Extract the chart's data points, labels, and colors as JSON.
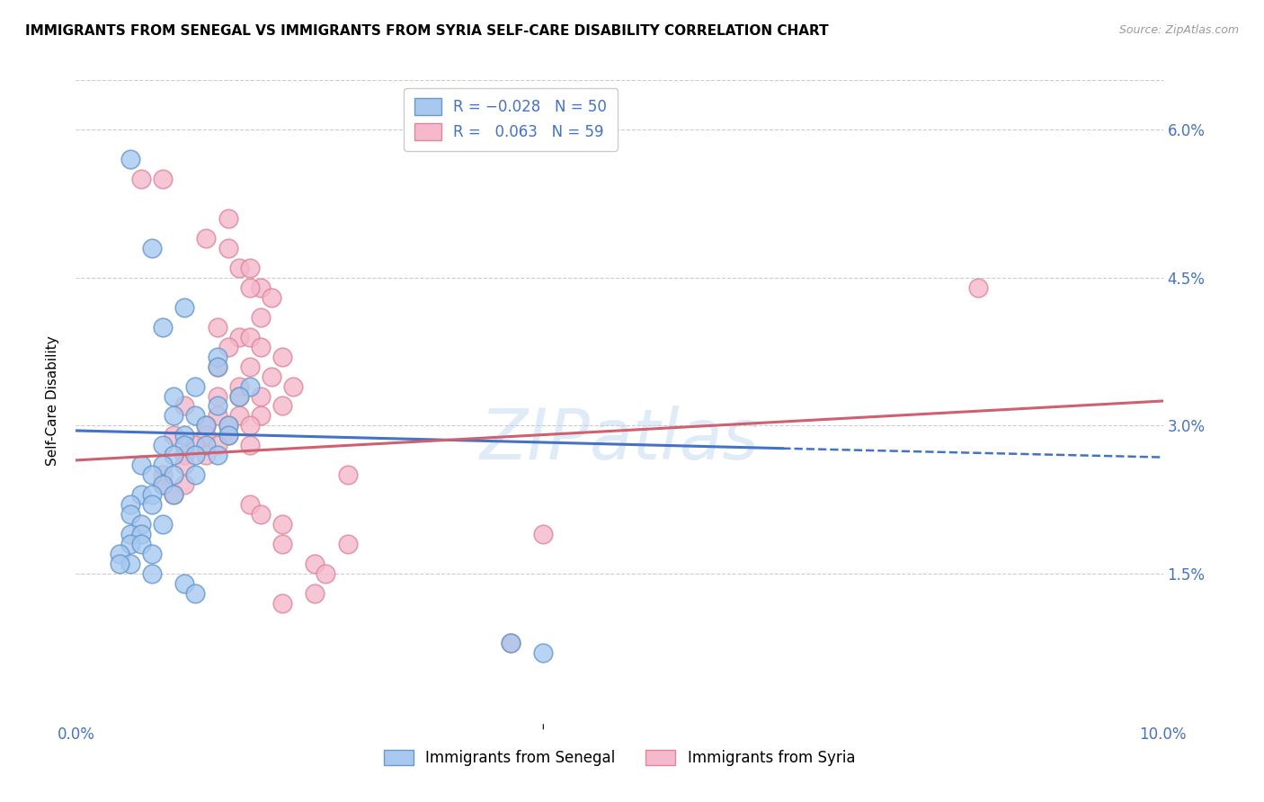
{
  "title": "IMMIGRANTS FROM SENEGAL VS IMMIGRANTS FROM SYRIA SELF-CARE DISABILITY CORRELATION CHART",
  "source": "Source: ZipAtlas.com",
  "ylabel": "Self-Care Disability",
  "ytick_labels": [
    "1.5%",
    "3.0%",
    "4.5%",
    "6.0%"
  ],
  "ytick_values": [
    0.015,
    0.03,
    0.045,
    0.06
  ],
  "xlim": [
    0.0,
    0.1
  ],
  "ylim": [
    0.0,
    0.065
  ],
  "senegal_color": "#a8c8f0",
  "syria_color": "#f5b8cc",
  "senegal_edge": "#6699cc",
  "syria_edge": "#dd8899",
  "trend_senegal_color": "#4472c4",
  "trend_syria_color": "#d06070",
  "watermark": "ZIPatlas",
  "senegal_trend_x": [
    0.0,
    0.065,
    0.1
  ],
  "senegal_trend_y_solid_start": 0.0295,
  "senegal_trend_y_solid_end": 0.0277,
  "senegal_trend_y_dash_start": 0.0277,
  "senegal_trend_y_dash_end": 0.0268,
  "syria_trend_x_start": 0.0,
  "syria_trend_x_end": 0.1,
  "syria_trend_y_start": 0.0265,
  "syria_trend_y_end": 0.0325,
  "senegal_points": [
    [
      0.005,
      0.057
    ],
    [
      0.007,
      0.048
    ],
    [
      0.01,
      0.042
    ],
    [
      0.008,
      0.04
    ],
    [
      0.013,
      0.037
    ],
    [
      0.013,
      0.036
    ],
    [
      0.011,
      0.034
    ],
    [
      0.016,
      0.034
    ],
    [
      0.009,
      0.033
    ],
    [
      0.015,
      0.033
    ],
    [
      0.013,
      0.032
    ],
    [
      0.009,
      0.031
    ],
    [
      0.011,
      0.031
    ],
    [
      0.014,
      0.03
    ],
    [
      0.012,
      0.03
    ],
    [
      0.01,
      0.029
    ],
    [
      0.014,
      0.029
    ],
    [
      0.012,
      0.028
    ],
    [
      0.008,
      0.028
    ],
    [
      0.01,
      0.028
    ],
    [
      0.009,
      0.027
    ],
    [
      0.011,
      0.027
    ],
    [
      0.013,
      0.027
    ],
    [
      0.008,
      0.026
    ],
    [
      0.006,
      0.026
    ],
    [
      0.007,
      0.025
    ],
    [
      0.009,
      0.025
    ],
    [
      0.011,
      0.025
    ],
    [
      0.008,
      0.024
    ],
    [
      0.006,
      0.023
    ],
    [
      0.007,
      0.023
    ],
    [
      0.009,
      0.023
    ],
    [
      0.005,
      0.022
    ],
    [
      0.007,
      0.022
    ],
    [
      0.005,
      0.021
    ],
    [
      0.006,
      0.02
    ],
    [
      0.008,
      0.02
    ],
    [
      0.005,
      0.019
    ],
    [
      0.006,
      0.019
    ],
    [
      0.005,
      0.018
    ],
    [
      0.006,
      0.018
    ],
    [
      0.007,
      0.017
    ],
    [
      0.004,
      0.017
    ],
    [
      0.005,
      0.016
    ],
    [
      0.004,
      0.016
    ],
    [
      0.007,
      0.015
    ],
    [
      0.01,
      0.014
    ],
    [
      0.011,
      0.013
    ],
    [
      0.04,
      0.008
    ],
    [
      0.043,
      0.007
    ]
  ],
  "syria_points": [
    [
      0.006,
      0.055
    ],
    [
      0.008,
      0.055
    ],
    [
      0.014,
      0.051
    ],
    [
      0.012,
      0.049
    ],
    [
      0.014,
      0.048
    ],
    [
      0.015,
      0.046
    ],
    [
      0.016,
      0.046
    ],
    [
      0.017,
      0.044
    ],
    [
      0.016,
      0.044
    ],
    [
      0.018,
      0.043
    ],
    [
      0.017,
      0.041
    ],
    [
      0.013,
      0.04
    ],
    [
      0.015,
      0.039
    ],
    [
      0.016,
      0.039
    ],
    [
      0.014,
      0.038
    ],
    [
      0.017,
      0.038
    ],
    [
      0.019,
      0.037
    ],
    [
      0.013,
      0.036
    ],
    [
      0.016,
      0.036
    ],
    [
      0.018,
      0.035
    ],
    [
      0.015,
      0.034
    ],
    [
      0.02,
      0.034
    ],
    [
      0.013,
      0.033
    ],
    [
      0.015,
      0.033
    ],
    [
      0.017,
      0.033
    ],
    [
      0.019,
      0.032
    ],
    [
      0.01,
      0.032
    ],
    [
      0.013,
      0.031
    ],
    [
      0.015,
      0.031
    ],
    [
      0.017,
      0.031
    ],
    [
      0.012,
      0.03
    ],
    [
      0.014,
      0.03
    ],
    [
      0.016,
      0.03
    ],
    [
      0.009,
      0.029
    ],
    [
      0.012,
      0.029
    ],
    [
      0.014,
      0.029
    ],
    [
      0.016,
      0.028
    ],
    [
      0.011,
      0.028
    ],
    [
      0.013,
      0.028
    ],
    [
      0.01,
      0.027
    ],
    [
      0.012,
      0.027
    ],
    [
      0.01,
      0.026
    ],
    [
      0.008,
      0.025
    ],
    [
      0.025,
      0.025
    ],
    [
      0.008,
      0.024
    ],
    [
      0.01,
      0.024
    ],
    [
      0.009,
      0.023
    ],
    [
      0.016,
      0.022
    ],
    [
      0.017,
      0.021
    ],
    [
      0.019,
      0.02
    ],
    [
      0.043,
      0.019
    ],
    [
      0.019,
      0.018
    ],
    [
      0.025,
      0.018
    ],
    [
      0.022,
      0.016
    ],
    [
      0.023,
      0.015
    ],
    [
      0.022,
      0.013
    ],
    [
      0.019,
      0.012
    ],
    [
      0.083,
      0.044
    ],
    [
      0.04,
      0.008
    ]
  ]
}
